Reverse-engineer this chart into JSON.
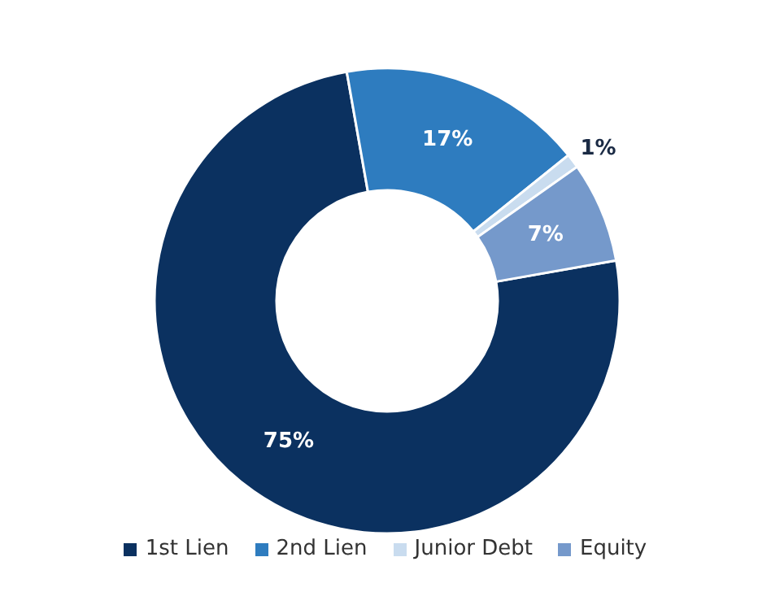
{
  "chart_data": {
    "type": "donut",
    "categories": [
      "1st Lien",
      "2nd Lien",
      "Junior Debt",
      "Equity"
    ],
    "values": [
      75,
      17,
      1,
      7
    ],
    "colors": [
      "#0b3160",
      "#2e7cbf",
      "#c9dcef",
      "#7599cb"
    ],
    "value_labels": [
      "75%",
      "17%",
      "1%",
      "7%"
    ],
    "legend": "bottom"
  }
}
